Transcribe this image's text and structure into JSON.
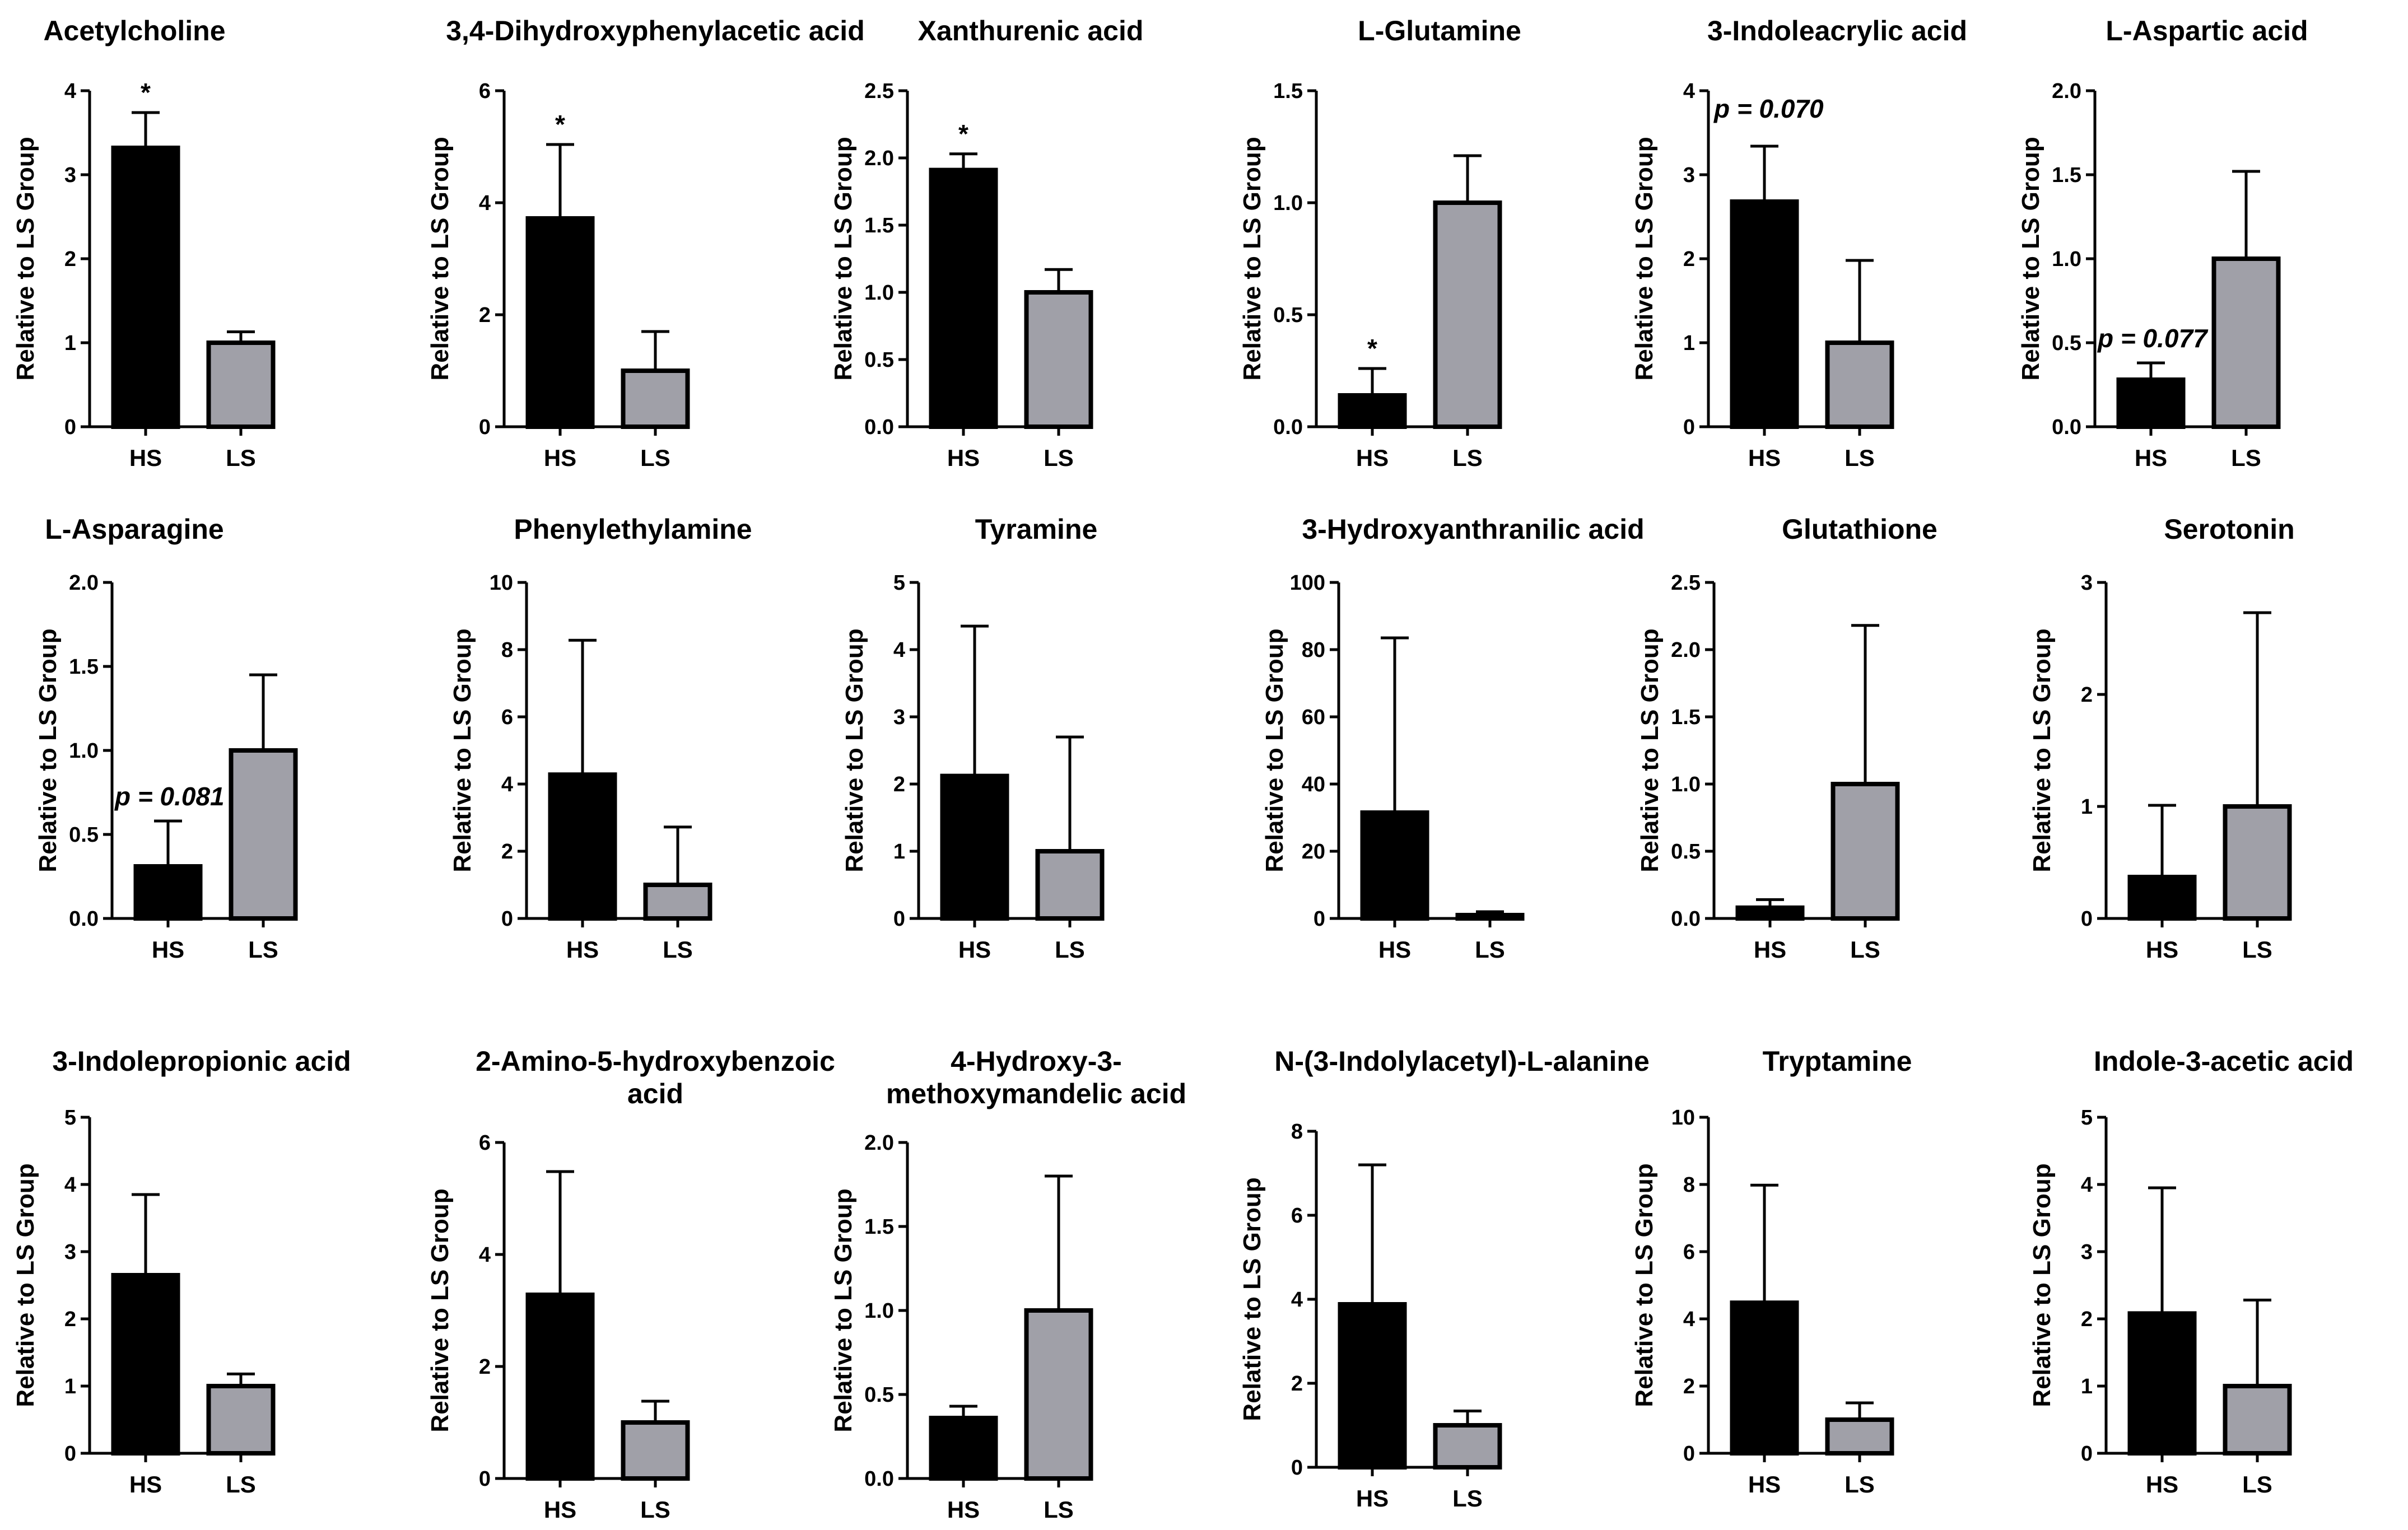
{
  "chart_data": [
    {
      "type": "bar",
      "title": [
        "Acetylcholine"
      ],
      "ylabel": "Relative to LS Group",
      "categories": [
        "HS",
        "LS"
      ],
      "values": [
        3.32,
        1.0
      ],
      "errors": [
        0.42,
        0.13
      ],
      "ylim": [
        0,
        4
      ],
      "yticks": [
        "0",
        "1",
        "2",
        "3",
        "4"
      ],
      "annotations": [
        {
          "text": "*",
          "bar": 0
        }
      ],
      "colors": [
        "#000000",
        "#a0a0a8"
      ]
    },
    {
      "type": "bar",
      "title": [
        "3,4-Dihydroxyphenylacetic acid"
      ],
      "ylabel": "Relative to LS Group",
      "categories": [
        "HS",
        "LS"
      ],
      "values": [
        3.72,
        1.0
      ],
      "errors": [
        1.32,
        0.7
      ],
      "ylim": [
        0,
        6
      ],
      "yticks": [
        "0",
        "2",
        "4",
        "6"
      ],
      "annotations": [
        {
          "text": "*",
          "bar": 0
        }
      ],
      "colors": [
        "#000000",
        "#a0a0a8"
      ]
    },
    {
      "type": "bar",
      "title": [
        "Xanthurenic acid"
      ],
      "ylabel": "Relative to LS Group",
      "categories": [
        "HS",
        "LS"
      ],
      "values": [
        1.91,
        1.0
      ],
      "errors": [
        0.12,
        0.17
      ],
      "ylim": [
        0,
        2.5
      ],
      "yticks": [
        "0.0",
        "0.5",
        "1.0",
        "1.5",
        "2.0",
        "2.5"
      ],
      "annotations": [
        {
          "text": "*",
          "bar": 0
        }
      ],
      "colors": [
        "#000000",
        "#a0a0a8"
      ]
    },
    {
      "type": "bar",
      "title": [
        "L-Glutamine"
      ],
      "ylabel": "Relative to LS Group",
      "categories": [
        "HS",
        "LS"
      ],
      "values": [
        0.14,
        1.0
      ],
      "errors": [
        0.12,
        0.21
      ],
      "ylim": [
        0,
        1.5
      ],
      "yticks": [
        "0.0",
        "0.5",
        "1.0",
        "1.5"
      ],
      "annotations": [
        {
          "text": "*",
          "bar": 0
        }
      ],
      "colors": [
        "#000000",
        "#a0a0a8"
      ]
    },
    {
      "type": "bar",
      "title": [
        "3-Indoleacrylic acid"
      ],
      "ylabel": "Relative to LS Group",
      "categories": [
        "HS",
        "LS"
      ],
      "values": [
        2.68,
        1.0
      ],
      "errors": [
        0.66,
        0.98
      ],
      "ylim": [
        0,
        4
      ],
      "yticks": [
        "0",
        "1",
        "2",
        "3",
        "4"
      ],
      "annotations": [
        {
          "text": "p = 0.070",
          "bar": -1
        }
      ],
      "colors": [
        "#000000",
        "#a0a0a8"
      ]
    },
    {
      "type": "bar",
      "title": [
        "L-Aspartic acid"
      ],
      "ylabel": "Relative to LS Group",
      "categories": [
        "HS",
        "LS"
      ],
      "values": [
        0.28,
        1.0
      ],
      "errors": [
        0.1,
        0.52
      ],
      "ylim": [
        0,
        2.0
      ],
      "yticks": [
        "0.0",
        "0.5",
        "1.0",
        "1.5",
        "2.0"
      ],
      "annotations": [
        {
          "text": "p = 0.077",
          "bar": 0
        }
      ],
      "colors": [
        "#000000",
        "#a0a0a8"
      ]
    },
    {
      "type": "bar",
      "title": [
        "L-Asparagine"
      ],
      "ylabel": "Relative to LS Group",
      "categories": [
        "HS",
        "LS"
      ],
      "values": [
        0.31,
        1.0
      ],
      "errors": [
        0.27,
        0.45
      ],
      "ylim": [
        0,
        2.0
      ],
      "yticks": [
        "0.0",
        "0.5",
        "1.0",
        "1.5",
        "2.0"
      ],
      "annotations": [
        {
          "text": "p = 0.081",
          "bar": 0
        }
      ],
      "colors": [
        "#000000",
        "#a0a0a8"
      ]
    },
    {
      "type": "bar",
      "title": [
        "Phenylethylamine"
      ],
      "ylabel": "Relative to LS Group",
      "categories": [
        "HS",
        "LS"
      ],
      "values": [
        4.28,
        1.0
      ],
      "errors": [
        4.0,
        1.72
      ],
      "ylim": [
        0,
        10
      ],
      "yticks": [
        "0",
        "2",
        "4",
        "6",
        "8",
        "10"
      ],
      "annotations": [],
      "colors": [
        "#000000",
        "#a0a0a8"
      ]
    },
    {
      "type": "bar",
      "title": [
        "Tyramine"
      ],
      "ylabel": "Relative to LS Group",
      "categories": [
        "HS",
        "LS"
      ],
      "values": [
        2.12,
        1.0
      ],
      "errors": [
        2.23,
        1.7
      ],
      "ylim": [
        0,
        5
      ],
      "yticks": [
        "0",
        "1",
        "2",
        "3",
        "4",
        "5"
      ],
      "annotations": [],
      "colors": [
        "#000000",
        "#a0a0a8"
      ]
    },
    {
      "type": "bar",
      "title": [
        "3-Hydroxyanthranilic acid"
      ],
      "ylabel": "Relative to LS Group",
      "categories": [
        "HS",
        "LS"
      ],
      "values": [
        31.5,
        1.0
      ],
      "errors": [
        52.0,
        1.0
      ],
      "ylim": [
        0,
        100
      ],
      "yticks": [
        "0",
        "20",
        "40",
        "60",
        "80",
        "100"
      ],
      "annotations": [],
      "colors": [
        "#000000",
        "#a0a0a8"
      ]
    },
    {
      "type": "bar",
      "title": [
        "Glutathione"
      ],
      "ylabel": "Relative to LS Group",
      "categories": [
        "HS",
        "LS"
      ],
      "values": [
        0.08,
        1.0
      ],
      "errors": [
        0.06,
        1.18
      ],
      "ylim": [
        0,
        2.5
      ],
      "yticks": [
        "0.0",
        "0.5",
        "1.0",
        "1.5",
        "2.0",
        "2.5"
      ],
      "annotations": [],
      "colors": [
        "#000000",
        "#a0a0a8"
      ]
    },
    {
      "type": "bar",
      "title": [
        "Serotonin"
      ],
      "ylabel": "Relative to LS Group",
      "categories": [
        "HS",
        "LS"
      ],
      "values": [
        0.37,
        1.0
      ],
      "errors": [
        0.64,
        1.73
      ],
      "ylim": [
        0,
        3
      ],
      "yticks": [
        "0",
        "1",
        "2",
        "3"
      ],
      "annotations": [],
      "colors": [
        "#000000",
        "#a0a0a8"
      ]
    },
    {
      "type": "bar",
      "title": [
        "3-Indolepropionic acid"
      ],
      "ylabel": "Relative to LS Group",
      "categories": [
        "HS",
        "LS"
      ],
      "values": [
        2.65,
        1.0
      ],
      "errors": [
        1.2,
        0.18
      ],
      "ylim": [
        0,
        5
      ],
      "yticks": [
        "0",
        "1",
        "2",
        "3",
        "4",
        "5"
      ],
      "annotations": [],
      "colors": [
        "#000000",
        "#a0a0a8"
      ]
    },
    {
      "type": "bar",
      "title": [
        "2-Amino-5-hydroxybenzoic",
        "acid"
      ],
      "ylabel": "Relative to LS Group",
      "categories": [
        "HS",
        "LS"
      ],
      "values": [
        3.28,
        1.0
      ],
      "errors": [
        2.2,
        0.38
      ],
      "ylim": [
        0,
        6
      ],
      "yticks": [
        "0",
        "2",
        "4",
        "6"
      ],
      "annotations": [],
      "colors": [
        "#000000",
        "#a0a0a8"
      ]
    },
    {
      "type": "bar",
      "title": [
        "4-Hydroxy-3-",
        "methoxymandelic acid"
      ],
      "ylabel": "Relative to LS Group",
      "categories": [
        "HS",
        "LS"
      ],
      "values": [
        0.36,
        1.0
      ],
      "errors": [
        0.07,
        0.8
      ],
      "ylim": [
        0,
        2.0
      ],
      "yticks": [
        "0.0",
        "0.5",
        "1.0",
        "1.5",
        "2.0"
      ],
      "annotations": [],
      "colors": [
        "#000000",
        "#a0a0a8"
      ]
    },
    {
      "type": "bar",
      "title": [
        "N-(3-Indolylacetyl)-L-alanine"
      ],
      "ylabel": "Relative to LS Group",
      "categories": [
        "HS",
        "LS"
      ],
      "values": [
        3.88,
        1.0
      ],
      "errors": [
        3.32,
        0.34
      ],
      "ylim": [
        0,
        8
      ],
      "yticks": [
        "0",
        "2",
        "4",
        "6",
        "8"
      ],
      "annotations": [],
      "colors": [
        "#000000",
        "#a0a0a8"
      ]
    },
    {
      "type": "bar",
      "title": [
        "Tryptamine"
      ],
      "ylabel": "Relative to LS Group",
      "categories": [
        "HS",
        "LS"
      ],
      "values": [
        4.48,
        1.0
      ],
      "errors": [
        3.5,
        0.5
      ],
      "ylim": [
        0,
        10
      ],
      "yticks": [
        "0",
        "2",
        "4",
        "6",
        "8",
        "10"
      ],
      "annotations": [],
      "colors": [
        "#000000",
        "#a0a0a8"
      ]
    },
    {
      "type": "bar",
      "title": [
        "Indole-3-acetic acid"
      ],
      "ylabel": "Relative to LS Group",
      "categories": [
        "HS",
        "LS"
      ],
      "values": [
        2.08,
        1.0
      ],
      "errors": [
        1.87,
        1.28
      ],
      "ylim": [
        0,
        5
      ],
      "yticks": [
        "0",
        "1",
        "2",
        "3",
        "4",
        "5"
      ],
      "annotations": [],
      "colors": [
        "#000000",
        "#a0a0a8"
      ]
    }
  ]
}
